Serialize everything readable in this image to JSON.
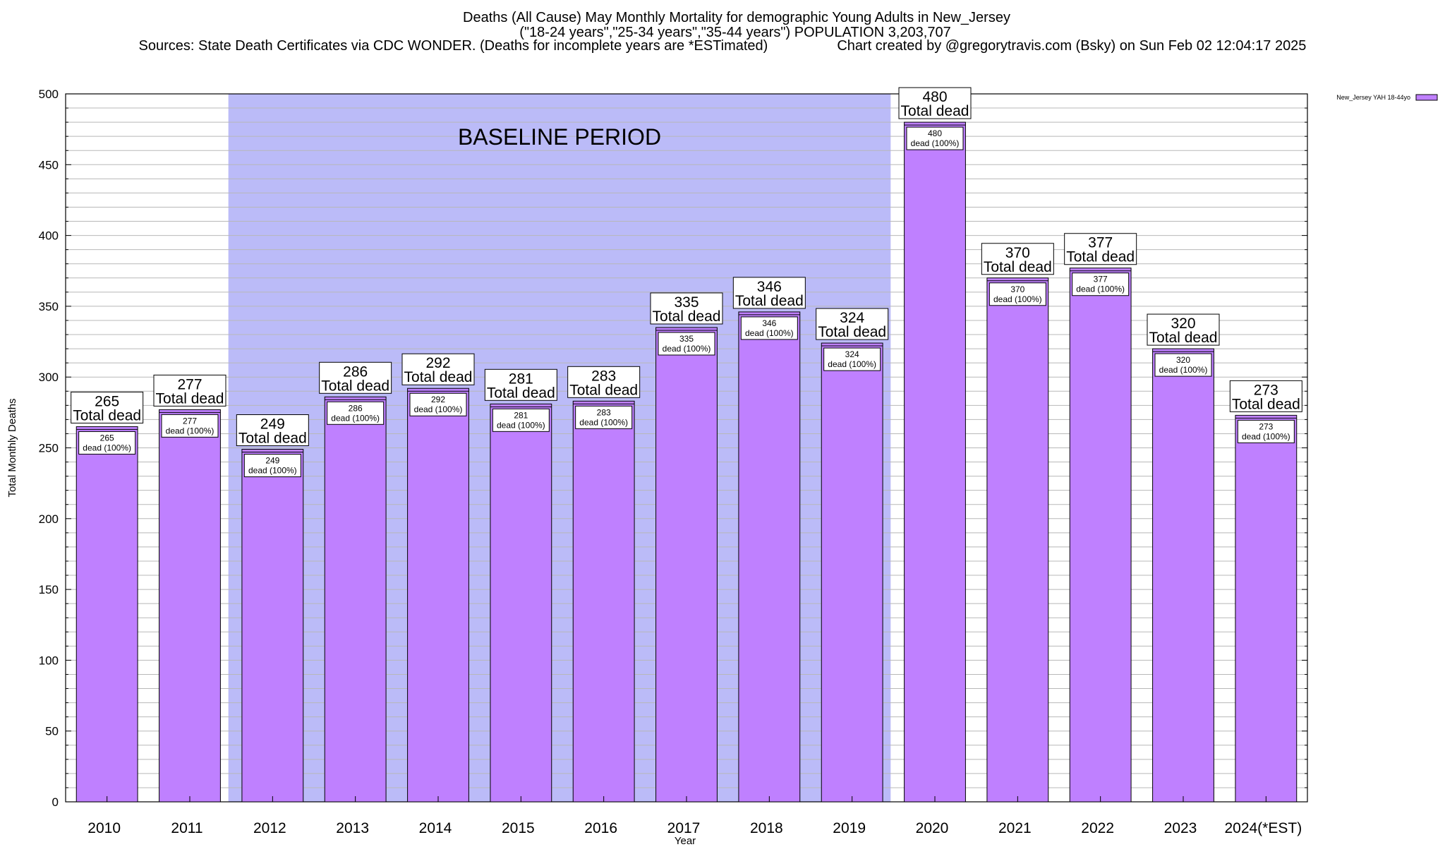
{
  "header": {
    "title": "Deaths (All Cause) May Monthly Mortality for demographic Young Adults in New_Jersey",
    "subtitle": "(\"18-24 years\",\"25-34 years\",\"35-44 years\") POPULATION 3,203,707",
    "sources": "Sources: State Death Certificates via CDC WONDER. (Deaths for incomplete years are *ESTimated)",
    "credit": "Chart created by @gregorytravis.com (Bsky) on Sun Feb 02 12:04:17 2025"
  },
  "chart_data": {
    "type": "bar",
    "xlabel": "Year",
    "ylabel": "Total Monthly Deaths",
    "ylim": [
      0,
      500
    ],
    "yticks": [
      0,
      50,
      100,
      150,
      200,
      250,
      300,
      350,
      400,
      450,
      500
    ],
    "grid": true,
    "legend_position": "top-right",
    "categories": [
      "2010",
      "2011",
      "2012",
      "2013",
      "2014",
      "2015",
      "2016",
      "2017",
      "2018",
      "2019",
      "2020",
      "2021",
      "2022",
      "2023",
      "2024(*EST)"
    ],
    "series": [
      {
        "name": "New_Jersey YAH 18-44yo",
        "color": "#bf80ff",
        "values": [
          265,
          277,
          249,
          286,
          292,
          281,
          283,
          335,
          346,
          324,
          480,
          370,
          377,
          320,
          273
        ]
      }
    ],
    "total_label": "Total dead",
    "inner_label_suffix": "dead (100%)",
    "baseline": {
      "label": "BASELINE PERIOD",
      "from_index": 2,
      "to_index": 9,
      "color": "#bbbbf8"
    }
  }
}
